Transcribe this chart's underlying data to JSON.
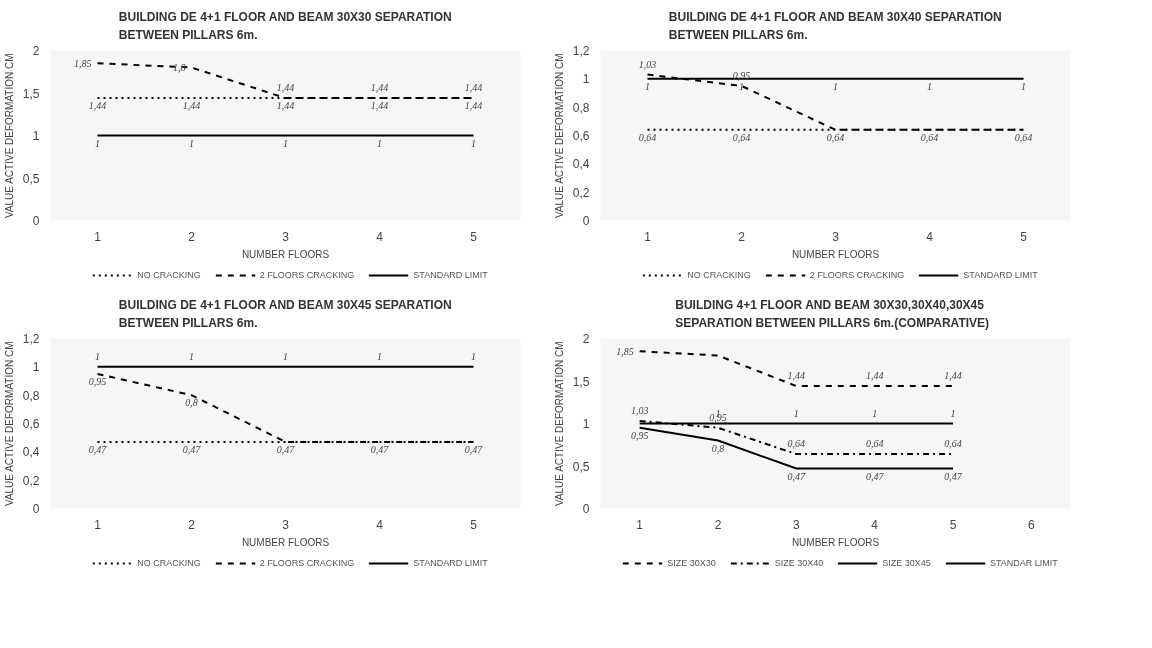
{
  "chart_data": [
    {
      "type": "line",
      "title": "BUILDING DE 4+1 FLOOR AND BEAM 30X30 SEPARATION\nBETWEEN  PILLARS 6m.",
      "xlabel": "NUMBER FLOORS",
      "ylabel": "VALUE ACTIVE DEFORMATION CM",
      "categories": [
        "1",
        "2",
        "3",
        "4",
        "5"
      ],
      "ylim": [
        0,
        2
      ],
      "yticks": [
        0,
        {
          "value": 0.5,
          "label": "0,5"
        },
        1,
        {
          "value": 1.5,
          "label": "1,5"
        },
        2
      ],
      "legend": "bottom",
      "grid": false,
      "series": [
        {
          "name": "NO CRACKING",
          "color": "#000000",
          "line_style": "dotted",
          "values": [
            1.44,
            1.44,
            1.44,
            1.44,
            1.44
          ],
          "value_labels": [
            "1,44",
            "1,44",
            "1,44",
            "1,44",
            "1,44"
          ]
        },
        {
          "name": "2 FLOORS CRACKING",
          "color": "#000000",
          "line_style": "dashed",
          "values": [
            1.85,
            1.8,
            1.44,
            1.44,
            1.44
          ],
          "value_labels": [
            "1,85",
            "1,8",
            "1,44",
            "1,44",
            "1,44"
          ]
        },
        {
          "name": "STANDARD LIMIT",
          "color": "#000000",
          "line_style": "solid",
          "values": [
            1,
            1,
            1,
            1,
            1
          ],
          "value_labels": [
            "1",
            "1",
            "1",
            "1",
            "1"
          ]
        }
      ]
    },
    {
      "type": "line",
      "title": "BUILDING DE 4+1 FLOOR AND BEAM 30X40 SEPARATION\nBETWEEN  PILLARS 6m.",
      "xlabel": "NUMBER FLOORS",
      "ylabel": "VALUE ACTIVE DEFORMATION CM",
      "categories": [
        "1",
        "2",
        "3",
        "4",
        "5"
      ],
      "ylim": [
        0,
        1.2
      ],
      "yticks": [
        0,
        {
          "value": 0.2,
          "label": "0,2"
        },
        {
          "value": 0.4,
          "label": "0,4"
        },
        {
          "value": 0.6,
          "label": "0,6"
        },
        {
          "value": 0.8,
          "label": "0,8"
        },
        1,
        {
          "value": 1.2,
          "label": "1,2"
        }
      ],
      "legend": "bottom",
      "grid": false,
      "series": [
        {
          "name": "NO CRACKING",
          "color": "#000000",
          "line_style": "dotted",
          "values": [
            0.64,
            0.64,
            0.64,
            0.64,
            0.64
          ],
          "value_labels": [
            "0,64",
            "0,64",
            "0,64",
            "0,64",
            "0,64"
          ]
        },
        {
          "name": "2 FLOORS CRACKING",
          "color": "#000000",
          "line_style": "dashed",
          "values": [
            1.03,
            0.95,
            0.64,
            0.64,
            0.64
          ],
          "value_labels": [
            "1,03",
            "0,95",
            null,
            null,
            null
          ]
        },
        {
          "name": "STANDARD LIMIT",
          "color": "#000000",
          "line_style": "solid",
          "values": [
            1,
            1,
            1,
            1,
            1
          ],
          "value_labels": [
            "1",
            "1",
            "1",
            "1",
            "1"
          ]
        }
      ]
    },
    {
      "type": "line",
      "title": "BUILDING DE 4+1 FLOOR AND BEAM 30X45 SEPARATION\nBETWEEN  PILLARS 6m.",
      "xlabel": "NUMBER FLOORS",
      "ylabel": "VALUE ACTIVE DEFORMATION CM",
      "categories": [
        "1",
        "2",
        "3",
        "4",
        "5"
      ],
      "ylim": [
        0,
        1.2
      ],
      "yticks": [
        0,
        {
          "value": 0.2,
          "label": "0,2"
        },
        {
          "value": 0.4,
          "label": "0,4"
        },
        {
          "value": 0.6,
          "label": "0,6"
        },
        {
          "value": 0.8,
          "label": "0,8"
        },
        1,
        {
          "value": 1.2,
          "label": "1,2"
        }
      ],
      "legend": "bottom",
      "grid": false,
      "series": [
        {
          "name": "NO CRACKING",
          "color": "#000000",
          "line_style": "dotted",
          "values": [
            0.47,
            0.47,
            0.47,
            0.47,
            0.47
          ],
          "value_labels": [
            "0,47",
            "0,47",
            "0,47",
            "0,47",
            "0,47"
          ]
        },
        {
          "name": "2 FLOORS CRACKING",
          "color": "#000000",
          "line_style": "dashed",
          "values": [
            0.95,
            0.8,
            0.47,
            0.47,
            0.47
          ],
          "value_labels": [
            "0,95",
            "0,8",
            null,
            null,
            null
          ]
        },
        {
          "name": "STANDARD LIMIT",
          "color": "#000000",
          "line_style": "solid",
          "values": [
            1,
            1,
            1,
            1,
            1
          ],
          "value_labels": [
            "1",
            "1",
            "1",
            "1",
            "1"
          ]
        }
      ]
    },
    {
      "type": "line",
      "title": "BUILDING  4+1 FLOOR AND BEAM 30X30,30X40,30X45\nSEPARATION  BETWEEN  PILLARS 6m.(COMPARATIVE)",
      "xlabel": "NUMBER FLOORS",
      "ylabel": "VALUE ACTIVE DEFORMATION CM",
      "categories": [
        "1",
        "2",
        "3",
        "4",
        "5",
        "6"
      ],
      "ylim": [
        0,
        2
      ],
      "yticks": [
        0,
        {
          "value": 0.5,
          "label": "0,5"
        },
        1,
        {
          "value": 1.5,
          "label": "1,5"
        },
        2
      ],
      "legend": "bottom",
      "grid": false,
      "series": [
        {
          "name": "SIZE 30X30",
          "color": "#000000",
          "line_style": "dashed",
          "values": [
            1.85,
            1.8,
            1.44,
            1.44,
            1.44,
            null
          ],
          "value_labels": [
            "1,85",
            null,
            "1,44",
            "1,44",
            "1,44",
            null
          ]
        },
        {
          "name": "SIZE 30X40",
          "color": "#000000",
          "line_style": "dashdot",
          "values": [
            1.03,
            0.95,
            0.64,
            0.64,
            0.64,
            null
          ],
          "value_labels": [
            "1,03",
            "0,95",
            "0,64",
            "0,64",
            "0,64",
            null
          ]
        },
        {
          "name": "SIZE 30X45",
          "color": "#000000",
          "line_style": "solid",
          "values": [
            0.95,
            0.8,
            0.47,
            0.47,
            0.47,
            null
          ],
          "value_labels": [
            "0,95",
            "0,8",
            "0,47",
            "0,47",
            "0,47",
            null
          ]
        },
        {
          "name": "STANDAR LIMIT",
          "color": "#000000",
          "line_style": "solid",
          "values": [
            1,
            1,
            1,
            1,
            1,
            null
          ],
          "value_labels": [
            null,
            "1",
            "1",
            "1",
            "1",
            null
          ]
        }
      ]
    }
  ]
}
